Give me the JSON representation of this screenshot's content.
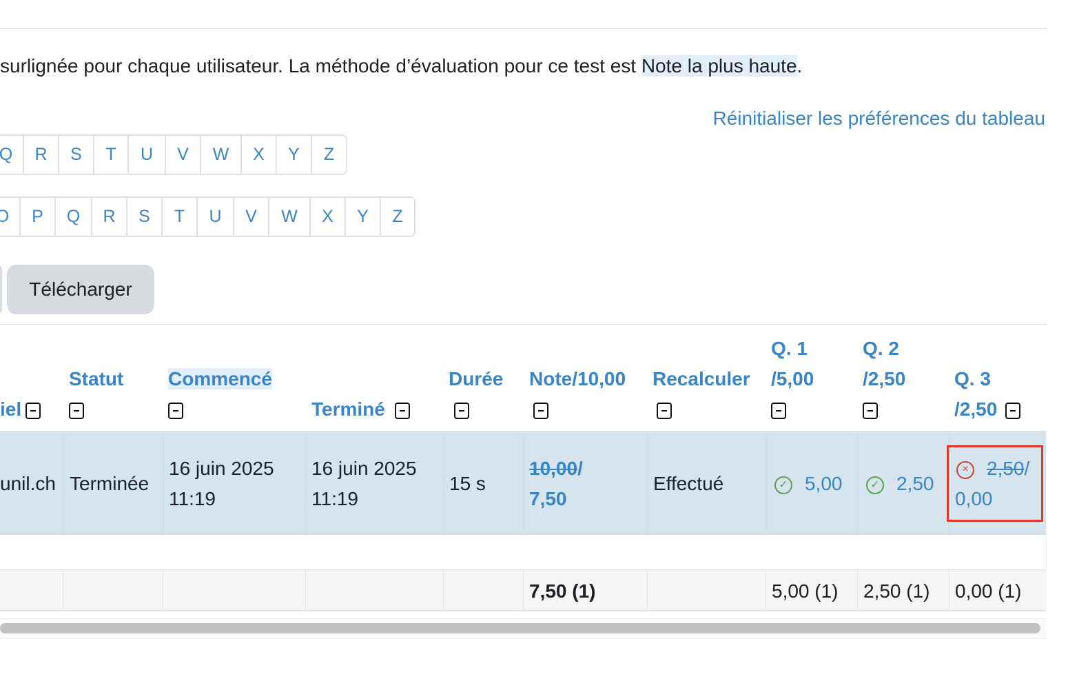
{
  "intro": {
    "text_before": "surlignée pour chaque utilisateur. La méthode d’évaluation pour ce test est ",
    "method": "Note la plus haute",
    "text_after": "."
  },
  "reset_link": "Réinitialiser les préférences du tableau",
  "firstname_letters": [
    "Q",
    "R",
    "S",
    "T",
    "U",
    "V",
    "W",
    "X",
    "Y",
    "Z"
  ],
  "lastname_letters": [
    "O",
    "P",
    "Q",
    "R",
    "S",
    "T",
    "U",
    "V",
    "W",
    "X",
    "Y",
    "Z"
  ],
  "download_button": "Télécharger",
  "table": {
    "headers": {
      "email_partial": "iel",
      "status": "Statut",
      "started": "Commencé",
      "finished": "Terminé",
      "duration": "Durée",
      "grade": "Note/10,00",
      "regrade": "Recalculer",
      "q1_a": "Q. 1",
      "q1_b": "/5,00",
      "q2_a": "Q. 2",
      "q2_b": "/2,50",
      "q3_a": "Q. 3",
      "q3_b": "/2,50"
    },
    "row": {
      "email_partial": "unil.ch",
      "status": "Terminée",
      "started_date": "16 juin 2025",
      "started_time": "11:19",
      "finished_date": "16 juin 2025",
      "finished_time": "11:19",
      "duration": "15 s",
      "grade_old": "10,00",
      "grade_new": "7,50",
      "regrade": "Effectué",
      "q1": "5,00",
      "q1_status": "correct",
      "q2": "2,50",
      "q2_status": "correct",
      "q3_old": "2,50",
      "q3_new": "0,00",
      "q3_status": "incorrect"
    },
    "footer": {
      "grade": "7,50 (1)",
      "q1": "5,00 (1)",
      "q2": "2,50 (1)",
      "q3": "0,00 (1)"
    }
  },
  "colors": {
    "link": "#3a85c6",
    "row_highlight": "#d6e4ee",
    "correct": "#5ba255",
    "incorrect": "#c8463e",
    "annotation_box": "#e0392b"
  }
}
